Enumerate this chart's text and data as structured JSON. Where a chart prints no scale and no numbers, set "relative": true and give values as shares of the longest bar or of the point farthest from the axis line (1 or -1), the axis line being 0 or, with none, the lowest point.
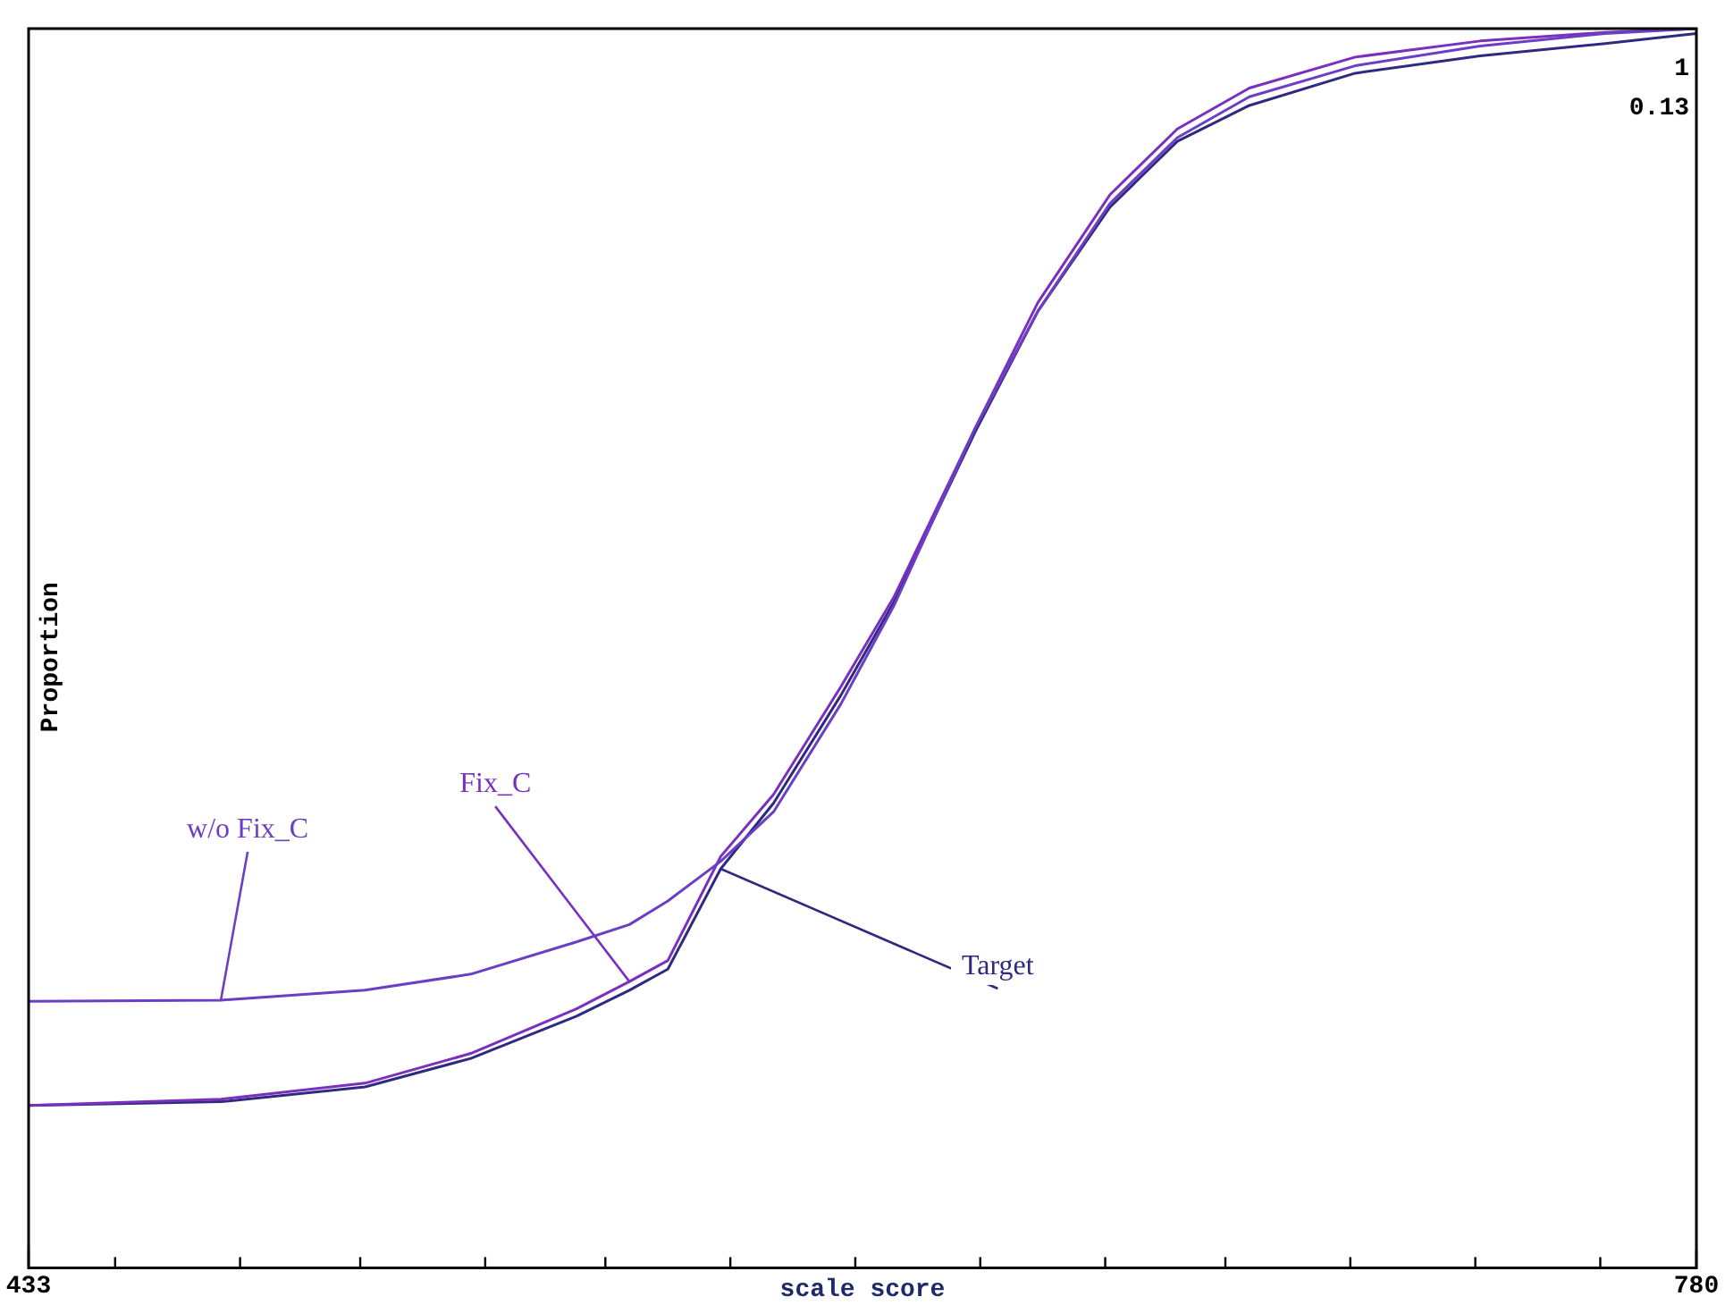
{
  "chart_data": {
    "type": "line",
    "xlabel": "scale score",
    "ylabel": "Proportion",
    "x": [
      433,
      473,
      503,
      525,
      547,
      558,
      566,
      577,
      588,
      602,
      613,
      630,
      643,
      658,
      672,
      687,
      709,
      735,
      761,
      780
    ],
    "xlim": [
      433,
      780
    ],
    "xticks": [
      433,
      {
        "value": 451,
        "label": null
      },
      {
        "value": 477,
        "label": null
      },
      {
        "value": 502,
        "label": null
      },
      {
        "value": 528,
        "label": null
      },
      {
        "value": 553,
        "label": null
      },
      {
        "value": 579,
        "label": null
      },
      {
        "value": 605,
        "label": null
      },
      {
        "value": 631,
        "label": null
      },
      {
        "value": 657,
        "label": null
      },
      {
        "value": 682,
        "label": null
      },
      {
        "value": 708,
        "label": null
      },
      {
        "value": 734,
        "label": null
      },
      {
        "value": 760,
        "label": null
      },
      780
    ],
    "relative": true,
    "series": [
      {
        "name": "w/o Fix_C",
        "color": "#6b3fc4",
        "values": [
          0.215,
          0.216,
          0.224,
          0.237,
          0.263,
          0.277,
          0.296,
          0.328,
          0.368,
          0.455,
          0.534,
          0.678,
          0.772,
          0.859,
          0.912,
          0.945,
          0.97,
          0.986,
          0.996,
          1.0
        ]
      },
      {
        "name": "Fix_C",
        "color": "#7a2fbf",
        "values": [
          0.131,
          0.136,
          0.149,
          0.173,
          0.209,
          0.231,
          0.248,
          0.332,
          0.382,
          0.469,
          0.541,
          0.678,
          0.779,
          0.866,
          0.919,
          0.952,
          0.977,
          0.99,
          0.997,
          1.0
        ]
      },
      {
        "name": "Target",
        "color": "#2e2a80",
        "values": [
          0.131,
          0.134,
          0.146,
          0.169,
          0.203,
          0.224,
          0.241,
          0.322,
          0.375,
          0.462,
          0.537,
          0.675,
          0.772,
          0.856,
          0.909,
          0.938,
          0.964,
          0.978,
          0.988,
          0.996
        ]
      }
    ],
    "annotations": [
      "1",
      "0.13"
    ],
    "grid": false,
    "legend": false,
    "marker": "none",
    "line_style": "solid"
  }
}
